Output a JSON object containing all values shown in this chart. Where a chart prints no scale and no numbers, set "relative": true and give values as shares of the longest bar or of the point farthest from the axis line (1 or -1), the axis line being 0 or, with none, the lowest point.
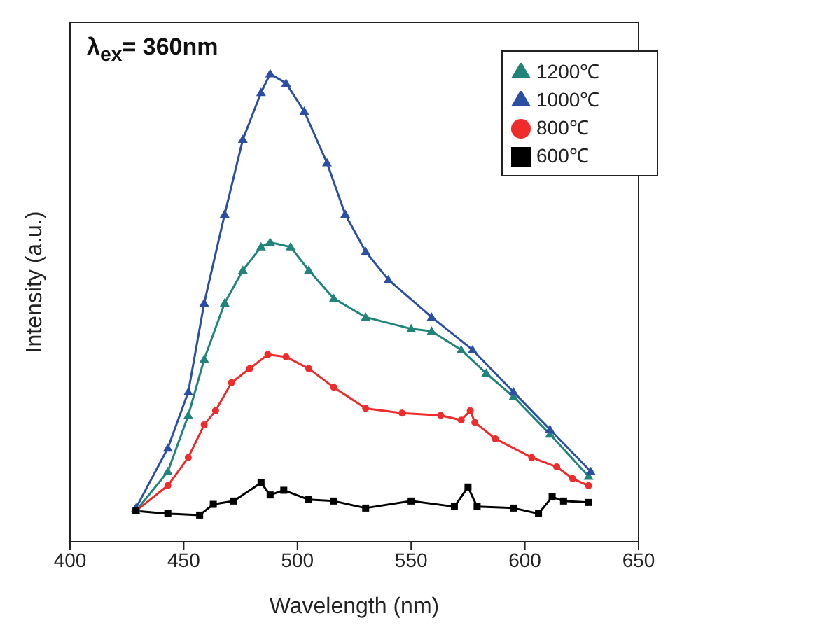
{
  "chart_data": {
    "type": "line",
    "relative": true,
    "xlabel": "Wavelength (nm)",
    "ylabel": "Intensity (a.u.)",
    "annotations": [
      "λ$_{ex}$= 360nm"
    ],
    "xlim": [
      400,
      650
    ],
    "xticks": [
      400,
      450,
      500,
      550,
      600,
      650
    ],
    "legend": "top right",
    "line_style": "solid",
    "series": [
      {
        "name": "1200℃",
        "color": "#21847a",
        "marker": "triangle",
        "x": [
          429,
          443,
          452,
          459,
          468,
          476,
          484,
          488,
          497,
          505,
          516,
          530,
          550,
          559,
          572,
          583,
          595,
          611,
          628
        ],
        "values": [
          0.066,
          0.15,
          0.27,
          0.39,
          0.51,
          0.58,
          0.63,
          0.64,
          0.63,
          0.58,
          0.52,
          0.48,
          0.455,
          0.45,
          0.41,
          0.36,
          0.31,
          0.23,
          0.14
        ]
      },
      {
        "name": "1000℃",
        "color": "#2c4fa6",
        "marker": "triangle",
        "x": [
          429,
          443,
          452,
          459,
          468,
          476,
          484,
          488,
          495,
          503,
          513,
          521,
          530,
          540,
          559,
          577,
          595,
          611,
          629
        ],
        "values": [
          0.072,
          0.2,
          0.32,
          0.51,
          0.7,
          0.86,
          0.96,
          1.0,
          0.98,
          0.92,
          0.81,
          0.7,
          0.62,
          0.56,
          0.48,
          0.41,
          0.32,
          0.24,
          0.15
        ]
      },
      {
        "name": "800℃",
        "color": "#ef2b2b",
        "marker": "circle",
        "x": [
          429,
          443,
          452,
          459,
          464,
          471,
          479,
          487,
          495,
          505,
          516,
          530,
          546,
          563,
          572,
          576,
          578,
          587,
          603,
          614,
          621,
          628
        ],
        "values": [
          0.066,
          0.12,
          0.18,
          0.25,
          0.28,
          0.34,
          0.37,
          0.4,
          0.395,
          0.37,
          0.33,
          0.285,
          0.275,
          0.27,
          0.26,
          0.28,
          0.255,
          0.22,
          0.18,
          0.16,
          0.135,
          0.12
        ]
      },
      {
        "name": "600℃",
        "color": "#000000",
        "marker": "square",
        "x": [
          429,
          443,
          457,
          463,
          472,
          484,
          488,
          494,
          505,
          516,
          530,
          550,
          569,
          575,
          579,
          595,
          606,
          612,
          617,
          628
        ],
        "values": [
          0.066,
          0.06,
          0.057,
          0.08,
          0.087,
          0.126,
          0.1,
          0.11,
          0.09,
          0.087,
          0.072,
          0.087,
          0.075,
          0.117,
          0.075,
          0.072,
          0.06,
          0.096,
          0.087,
          0.084
        ]
      }
    ]
  }
}
